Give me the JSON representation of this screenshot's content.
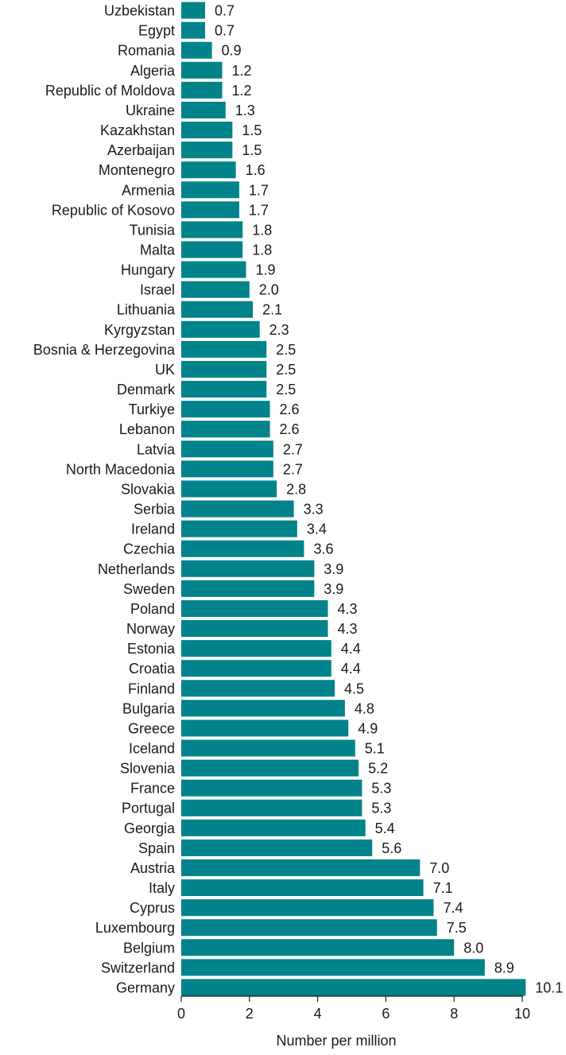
{
  "chart_data": {
    "type": "bar",
    "orientation": "horizontal",
    "categories": [
      "Uzbekistan",
      "Egypt",
      "Romania",
      "Algeria",
      "Republic of Moldova",
      "Ukraine",
      "Kazakhstan",
      "Azerbaijan",
      "Montenegro",
      "Armenia",
      "Republic of Kosovo",
      "Tunisia",
      "Malta",
      "Hungary",
      "Israel",
      "Lithuania",
      "Kyrgyzstan",
      "Bosnia & Herzegovina",
      "UK",
      "Denmark",
      "Turkiye",
      "Lebanon",
      "Latvia",
      "North Macedonia",
      "Slovakia",
      "Serbia",
      "Ireland",
      "Czechia",
      "Netherlands",
      "Sweden",
      "Poland",
      "Norway",
      "Estonia",
      "Croatia",
      "Finland",
      "Bulgaria",
      "Greece",
      "Iceland",
      "Slovenia",
      "France",
      "Portugal",
      "Georgia",
      "Spain",
      "Austria",
      "Italy",
      "Cyprus",
      "Luxembourg",
      "Belgium",
      "Switzerland",
      "Germany"
    ],
    "values": [
      0.7,
      0.7,
      0.9,
      1.2,
      1.2,
      1.3,
      1.5,
      1.5,
      1.6,
      1.7,
      1.7,
      1.8,
      1.8,
      1.9,
      2.0,
      2.1,
      2.3,
      2.5,
      2.5,
      2.5,
      2.6,
      2.6,
      2.7,
      2.7,
      2.8,
      3.3,
      3.4,
      3.6,
      3.9,
      3.9,
      4.3,
      4.3,
      4.4,
      4.4,
      4.5,
      4.8,
      4.9,
      5.1,
      5.2,
      5.3,
      5.3,
      5.4,
      5.6,
      7.0,
      7.1,
      7.4,
      7.5,
      8.0,
      8.9,
      10.1
    ],
    "value_labels": [
      "0.7",
      "0.7",
      "0.9",
      "1.2",
      "1.2",
      "1.3",
      "1.5",
      "1.5",
      "1.6",
      "1.7",
      "1.7",
      "1.8",
      "1.8",
      "1.9",
      "2.0",
      "2.1",
      "2.3",
      "2.5",
      "2.5",
      "2.5",
      "2.6",
      "2.6",
      "2.7",
      "2.7",
      "2.8",
      "3.3",
      "3.4",
      "3.6",
      "3.9",
      "3.9",
      "4.3",
      "4.3",
      "4.4",
      "4.4",
      "4.5",
      "4.8",
      "4.9",
      "5.1",
      "5.2",
      "5.3",
      "5.3",
      "5.4",
      "5.6",
      "7.0",
      "7.1",
      "7.4",
      "7.5",
      "8.0",
      "8.9",
      "10.1"
    ],
    "xticks": [
      "0",
      "2",
      "4",
      "6",
      "8",
      "10"
    ],
    "xlim": [
      0,
      10.1
    ],
    "xlabel": "Number per million",
    "ylabel": "",
    "title": "",
    "bar_color": "#00838a",
    "grid": false
  }
}
